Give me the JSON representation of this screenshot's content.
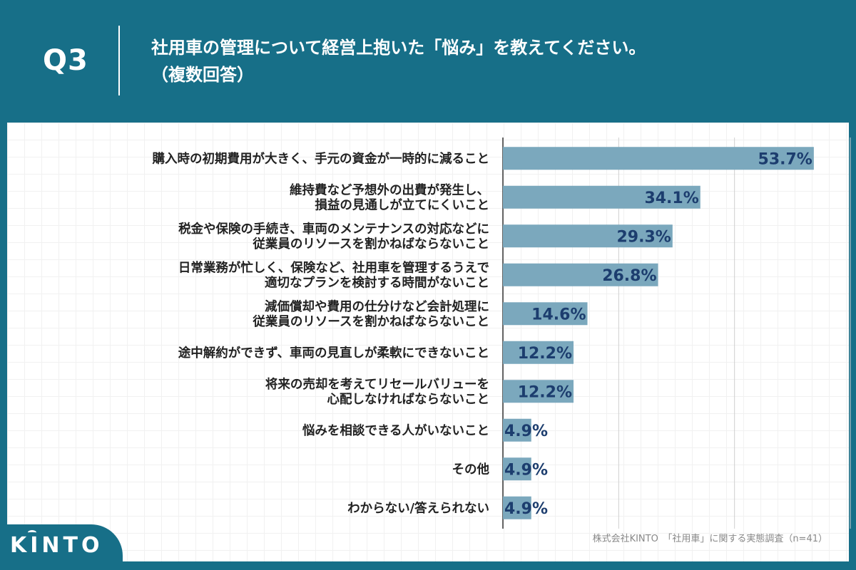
{
  "header": {
    "question": "Q3",
    "title_line1": "社用車の管理について経営上抱いた「悩み」を教えてください。",
    "title_line2": "（複数回答）"
  },
  "footer": {
    "logo": "KINTO",
    "source": "株式会社KINTO　「社用車」に関する実態調査（n=41）"
  },
  "colors": {
    "background": "#176f88",
    "bar": "#7ba8bd",
    "value_text": "#1c3d6e"
  },
  "chart_data": {
    "type": "bar",
    "orientation": "horizontal",
    "title": "社用車の管理について経営上抱いた「悩み」を教えてください。（複数回答）",
    "xlim": [
      0,
      60
    ],
    "grid": true,
    "unit": "%",
    "categories": [
      [
        "購入時の初期費用が大きく、手元の資金が一時的に減ること"
      ],
      [
        "維持費など予想外の出費が発生し、",
        "損益の見通しが立てにくいこと"
      ],
      [
        "税金や保険の手続き、車両のメンテナンスの対応などに",
        "従業員のリソースを割かねばならないこと"
      ],
      [
        "日常業務が忙しく、保険など、社用車を管理するうえで",
        "適切なプランを検討する時間がないこと"
      ],
      [
        "減価償却や費用の仕分けなど会計処理に",
        "従業員のリソースを割かねばならないこと"
      ],
      [
        "途中解約ができず、車両の見直しが柔軟にできないこと"
      ],
      [
        "将来の売却を考えてリセールバリューを",
        "心配しなければならないこと"
      ],
      [
        "悩みを相談できる人がいないこと"
      ],
      [
        "その他"
      ],
      [
        "わからない/答えられない"
      ]
    ],
    "values": [
      53.7,
      34.1,
      29.3,
      26.8,
      14.6,
      12.2,
      12.2,
      4.9,
      4.9,
      4.9
    ],
    "value_labels": [
      "53.7%",
      "34.1%",
      "29.3%",
      "26.8%",
      "14.6%",
      "12.2%",
      "12.2%",
      "4.9%",
      "4.9%",
      "4.9%"
    ]
  }
}
